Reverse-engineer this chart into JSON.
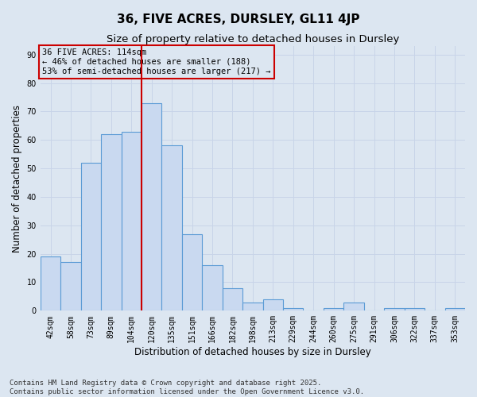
{
  "title": "36, FIVE ACRES, DURSLEY, GL11 4JP",
  "subtitle": "Size of property relative to detached houses in Dursley",
  "xlabel": "Distribution of detached houses by size in Dursley",
  "ylabel": "Number of detached properties",
  "bar_labels": [
    "42sqm",
    "58sqm",
    "73sqm",
    "89sqm",
    "104sqm",
    "120sqm",
    "135sqm",
    "151sqm",
    "166sqm",
    "182sqm",
    "198sqm",
    "213sqm",
    "229sqm",
    "244sqm",
    "260sqm",
    "275sqm",
    "291sqm",
    "306sqm",
    "322sqm",
    "337sqm",
    "353sqm"
  ],
  "bar_values": [
    19,
    17,
    52,
    62,
    63,
    73,
    58,
    27,
    16,
    8,
    3,
    4,
    1,
    0,
    1,
    3,
    0,
    1,
    1,
    0,
    1
  ],
  "bar_color": "#c9d9f0",
  "bar_edge_color": "#5b9bd5",
  "bar_linewidth": 0.8,
  "grid_color": "#c8d4e8",
  "background_color": "#dce6f1",
  "vline_x_index": 4.5,
  "vline_color": "#cc0000",
  "annotation_line1": "36 FIVE ACRES: 114sqm",
  "annotation_line2": "← 46% of detached houses are smaller (188)",
  "annotation_line3": "53% of semi-detached houses are larger (217) →",
  "annotation_box_color": "#cc0000",
  "ylim": [
    0,
    93
  ],
  "yticks": [
    0,
    10,
    20,
    30,
    40,
    50,
    60,
    70,
    80,
    90
  ],
  "footer_line1": "Contains HM Land Registry data © Crown copyright and database right 2025.",
  "footer_line2": "Contains public sector information licensed under the Open Government Licence v3.0.",
  "title_fontsize": 11,
  "subtitle_fontsize": 9.5,
  "label_fontsize": 8.5,
  "tick_fontsize": 7,
  "annotation_fontsize": 7.5,
  "footer_fontsize": 6.5
}
